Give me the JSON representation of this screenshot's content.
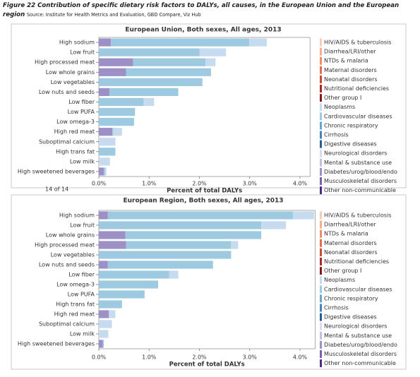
{
  "caption": {
    "title": "Figure 22 Contribution of specific dietary risk factors to DALYs, all causes, in the European Union and the European region",
    "source": "Source: Institute for Health Metrics and Evaluation, GBD Compare, Viz Hub"
  },
  "chart_data": [
    {
      "type": "stacked-barh",
      "title": "European Union, Both sexes, All ages, 2013",
      "xlabel": "Percent of total DALYs",
      "annotation": "14 of 14",
      "categories": [
        "High sodium",
        "Low fruit",
        "High processed meat",
        "Low whole grains",
        "Low vegetables",
        "Low nuts and seeds",
        "Low fiber",
        "Low PUFA",
        "Low omega-3",
        "High red meat",
        "Suboptimal calcium",
        "High trans fat",
        "Low milk",
        "High sweetened beverages"
      ],
      "xlim": [
        0,
        4.2
      ],
      "xticks": [
        {
          "value": 0,
          "label": "0.0%"
        },
        {
          "value": 1,
          "label": "1.0%"
        },
        {
          "value": 2,
          "label": "2.0%"
        },
        {
          "value": 3,
          "label": "3.0%"
        },
        {
          "value": 4,
          "label": "4.0%"
        }
      ],
      "series": [
        {
          "name": "HIV/AIDS & tuberculosis",
          "color": "#f7cdb8",
          "values": [
            0,
            0,
            0,
            0,
            0,
            0,
            0,
            0,
            0,
            0,
            0,
            0,
            0,
            0
          ]
        },
        {
          "name": "Diarrhea/LRI/other",
          "color": "#f3ad8f",
          "values": [
            0,
            0,
            0,
            0,
            0,
            0,
            0,
            0,
            0,
            0,
            0,
            0,
            0,
            0
          ]
        },
        {
          "name": "NTDs & malaria",
          "color": "#ee8d68",
          "values": [
            0,
            0,
            0,
            0,
            0,
            0,
            0,
            0,
            0,
            0,
            0,
            0,
            0,
            0
          ]
        },
        {
          "name": "Maternal disorders",
          "color": "#e46c4f",
          "values": [
            0,
            0,
            0,
            0,
            0,
            0,
            0,
            0,
            0,
            0,
            0,
            0,
            0,
            0
          ]
        },
        {
          "name": "Neonatal disorders",
          "color": "#cf4b37",
          "values": [
            0,
            0,
            0,
            0,
            0,
            0,
            0,
            0,
            0,
            0,
            0,
            0,
            0,
            0
          ]
        },
        {
          "name": "Nutritional deficiencies",
          "color": "#ac2a25",
          "values": [
            0,
            0,
            0,
            0,
            0,
            0,
            0,
            0,
            0,
            0,
            0,
            0,
            0,
            0
          ]
        },
        {
          "name": "Other group I",
          "color": "#861818",
          "values": [
            0,
            0,
            0,
            0,
            0,
            0,
            0,
            0,
            0,
            0,
            0,
            0,
            0,
            0
          ]
        },
        {
          "name": "Neoplasms",
          "color": "#c6dbef",
          "values": [
            0.35,
            0.53,
            0.2,
            0,
            0,
            0,
            0.21,
            0,
            0,
            0.17,
            0.33,
            0,
            0.22,
            0.02
          ]
        },
        {
          "name": "Cardiovascular diseases",
          "color": "#9ecae1",
          "values": [
            2.75,
            2.0,
            1.44,
            1.69,
            2.06,
            1.37,
            0.89,
            0.72,
            0.7,
            0.02,
            0,
            0.33,
            0,
            0.03
          ]
        },
        {
          "name": "Chronic respiratory",
          "color": "#6ba5cf",
          "values": [
            0,
            0,
            0,
            0,
            0,
            0,
            0,
            0,
            0,
            0,
            0,
            0,
            0,
            0
          ]
        },
        {
          "name": "Cirrhosis",
          "color": "#4584bb",
          "values": [
            0,
            0,
            0,
            0,
            0,
            0,
            0,
            0,
            0,
            0,
            0,
            0,
            0,
            0
          ]
        },
        {
          "name": "Digestive diseases",
          "color": "#285c97",
          "values": [
            0,
            0,
            0,
            0,
            0,
            0,
            0,
            0,
            0,
            0,
            0,
            0,
            0,
            0
          ]
        },
        {
          "name": "Neurological disorders",
          "color": "#dcdbec",
          "values": [
            0,
            0,
            0,
            0,
            0,
            0,
            0,
            0,
            0,
            0,
            0,
            0,
            0,
            0
          ]
        },
        {
          "name": "Mental & substance use",
          "color": "#c3bfdf",
          "values": [
            0,
            0,
            0,
            0,
            0,
            0,
            0,
            0,
            0,
            0,
            0,
            0,
            0,
            0
          ]
        },
        {
          "name": "Diabetes/urog/blood/endo",
          "color": "#9d90c6",
          "values": [
            0.24,
            0,
            0.68,
            0.54,
            0,
            0.21,
            0,
            0,
            0,
            0.27,
            0,
            0,
            0,
            0.1
          ]
        },
        {
          "name": "Musculoskeletal disorders",
          "color": "#7a62ab",
          "values": [
            0,
            0,
            0,
            0,
            0,
            0,
            0,
            0,
            0,
            0,
            0,
            0,
            0,
            0
          ]
        },
        {
          "name": "Other non-communicable",
          "color": "#53288a",
          "values": [
            0,
            0,
            0,
            0,
            0,
            0,
            0,
            0,
            0,
            0,
            0,
            0,
            0,
            0
          ]
        }
      ]
    },
    {
      "type": "stacked-barh",
      "title": "European Region, Both sexes, All ages, 2013",
      "xlabel": "Percent of total DALYs",
      "categories": [
        "High sodium",
        "Low fruit",
        "Low whole grains",
        "High processed meat",
        "Low vegetables",
        "Low nuts and seeds",
        "Low fiber",
        "Low omega-3",
        "Low PUFA",
        "High trans fat",
        "High red meat",
        "Suboptimal calcium",
        "Low milk",
        "High sweetened beverages"
      ],
      "xlim": [
        0,
        4.3
      ],
      "xticks": [
        {
          "value": 0,
          "label": "0.0%"
        },
        {
          "value": 1,
          "label": "1.0%"
        },
        {
          "value": 2,
          "label": "2.0%"
        },
        {
          "value": 3,
          "label": "3.0%"
        },
        {
          "value": 4,
          "label": "4.0%"
        }
      ],
      "series": [
        {
          "name": "HIV/AIDS & tuberculosis",
          "color": "#f7cdb8",
          "values": [
            0,
            0,
            0,
            0,
            0,
            0,
            0,
            0,
            0,
            0,
            0,
            0,
            0,
            0
          ]
        },
        {
          "name": "Diarrhea/LRI/other",
          "color": "#f3ad8f",
          "values": [
            0,
            0,
            0,
            0,
            0,
            0,
            0,
            0,
            0,
            0,
            0,
            0,
            0,
            0
          ]
        },
        {
          "name": "NTDs & malaria",
          "color": "#ee8d68",
          "values": [
            0,
            0,
            0,
            0,
            0,
            0,
            0,
            0,
            0,
            0,
            0,
            0,
            0,
            0
          ]
        },
        {
          "name": "Maternal disorders",
          "color": "#e46c4f",
          "values": [
            0,
            0,
            0,
            0,
            0,
            0,
            0,
            0,
            0,
            0,
            0,
            0,
            0,
            0
          ]
        },
        {
          "name": "Neonatal disorders",
          "color": "#cf4b37",
          "values": [
            0,
            0,
            0,
            0,
            0,
            0,
            0,
            0,
            0,
            0,
            0,
            0,
            0,
            0
          ]
        },
        {
          "name": "Nutritional deficiencies",
          "color": "#ac2a25",
          "values": [
            0,
            0,
            0,
            0,
            0,
            0,
            0,
            0,
            0,
            0,
            0,
            0,
            0,
            0
          ]
        },
        {
          "name": "Other group I",
          "color": "#861818",
          "values": [
            0,
            0,
            0,
            0,
            0,
            0,
            0,
            0,
            0,
            0,
            0,
            0,
            0,
            0
          ]
        },
        {
          "name": "Neoplasms",
          "color": "#c6dbef",
          "values": [
            0.42,
            0.49,
            0,
            0.14,
            0,
            0,
            0.18,
            0,
            0,
            0,
            0.13,
            0.26,
            0.19,
            0
          ]
        },
        {
          "name": "Cardiovascular diseases",
          "color": "#9ecae1",
          "values": [
            3.68,
            3.23,
            2.7,
            2.09,
            2.63,
            2.09,
            1.4,
            1.18,
            0.91,
            0.46,
            0,
            0,
            0,
            0.02
          ]
        },
        {
          "name": "Chronic respiratory",
          "color": "#6ba5cf",
          "values": [
            0,
            0,
            0,
            0,
            0,
            0,
            0,
            0,
            0,
            0,
            0,
            0,
            0,
            0
          ]
        },
        {
          "name": "Cirrhosis",
          "color": "#4584bb",
          "values": [
            0,
            0,
            0,
            0,
            0,
            0,
            0,
            0,
            0,
            0,
            0,
            0,
            0,
            0
          ]
        },
        {
          "name": "Digestive diseases",
          "color": "#285c97",
          "values": [
            0,
            0,
            0,
            0,
            0,
            0,
            0,
            0,
            0,
            0,
            0,
            0,
            0,
            0
          ]
        },
        {
          "name": "Neurological disorders",
          "color": "#dcdbec",
          "values": [
            0,
            0,
            0,
            0,
            0,
            0,
            0,
            0,
            0,
            0,
            0,
            0,
            0,
            0
          ]
        },
        {
          "name": "Mental & substance use",
          "color": "#c3bfdf",
          "values": [
            0,
            0,
            0,
            0,
            0,
            0,
            0,
            0,
            0,
            0,
            0,
            0,
            0,
            0
          ]
        },
        {
          "name": "Diabetes/urog/blood/endo",
          "color": "#9d90c6",
          "values": [
            0.18,
            0,
            0.53,
            0.54,
            0,
            0.18,
            0,
            0,
            0,
            0,
            0.2,
            0,
            0,
            0.08
          ]
        },
        {
          "name": "Musculoskeletal disorders",
          "color": "#7a62ab",
          "values": [
            0,
            0,
            0,
            0,
            0,
            0,
            0,
            0,
            0,
            0,
            0,
            0,
            0,
            0
          ]
        },
        {
          "name": "Other non-communicable",
          "color": "#53288a",
          "values": [
            0,
            0,
            0,
            0,
            0,
            0,
            0,
            0,
            0,
            0,
            0,
            0,
            0,
            0
          ]
        }
      ]
    }
  ]
}
